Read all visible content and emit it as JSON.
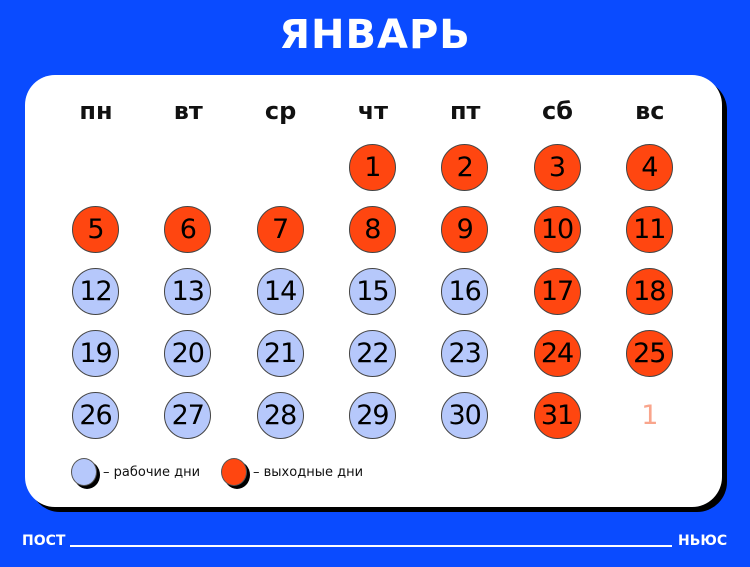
{
  "title": "ЯНВАРЬ",
  "colors": {
    "background": "#0a4bff",
    "workday": "#b6c8fb",
    "dayoff": "#ff4610",
    "next_month": "#f9a58c"
  },
  "weekdays": [
    "пн",
    "вт",
    "ср",
    "чт",
    "пт",
    "сб",
    "вс"
  ],
  "start_offset": 3,
  "days": [
    {
      "n": "1",
      "t": "off"
    },
    {
      "n": "2",
      "t": "off"
    },
    {
      "n": "3",
      "t": "off"
    },
    {
      "n": "4",
      "t": "off"
    },
    {
      "n": "5",
      "t": "off"
    },
    {
      "n": "6",
      "t": "off"
    },
    {
      "n": "7",
      "t": "off"
    },
    {
      "n": "8",
      "t": "off"
    },
    {
      "n": "9",
      "t": "off"
    },
    {
      "n": "10",
      "t": "off"
    },
    {
      "n": "11",
      "t": "off"
    },
    {
      "n": "12",
      "t": "work"
    },
    {
      "n": "13",
      "t": "work"
    },
    {
      "n": "14",
      "t": "work"
    },
    {
      "n": "15",
      "t": "work"
    },
    {
      "n": "16",
      "t": "work"
    },
    {
      "n": "17",
      "t": "off"
    },
    {
      "n": "18",
      "t": "off"
    },
    {
      "n": "19",
      "t": "work"
    },
    {
      "n": "20",
      "t": "work"
    },
    {
      "n": "21",
      "t": "work"
    },
    {
      "n": "22",
      "t": "work"
    },
    {
      "n": "23",
      "t": "work"
    },
    {
      "n": "24",
      "t": "off"
    },
    {
      "n": "25",
      "t": "off"
    },
    {
      "n": "26",
      "t": "work"
    },
    {
      "n": "27",
      "t": "work"
    },
    {
      "n": "28",
      "t": "work"
    },
    {
      "n": "29",
      "t": "work"
    },
    {
      "n": "30",
      "t": "work"
    },
    {
      "n": "31",
      "t": "off"
    },
    {
      "n": "1",
      "t": "next"
    }
  ],
  "legend": {
    "work": "– рабочие дни",
    "off": "– выходные дни"
  },
  "footer": {
    "left": "ПОСТ",
    "right": "НЬЮС"
  }
}
